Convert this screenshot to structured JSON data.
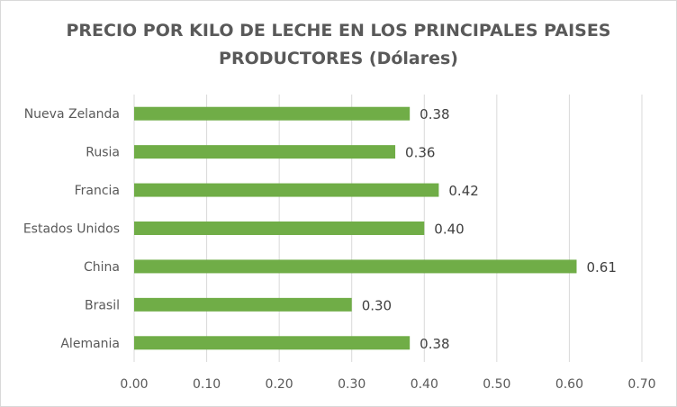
{
  "chart_data": {
    "type": "bar",
    "orientation": "horizontal",
    "title_lines": [
      "PRECIO POR KILO DE LECHE EN LOS PRINCIPALES PAISES",
      "PRODUCTORES (Dólares)"
    ],
    "categories": [
      "Nueva Zelanda",
      "Rusia",
      "Francia",
      "Estados Unidos",
      "China",
      "Brasil",
      "Alemania"
    ],
    "values": [
      0.38,
      0.36,
      0.42,
      0.4,
      0.61,
      0.3,
      0.38
    ],
    "value_labels": [
      "0.38",
      "0.36",
      "0.42",
      "0.40",
      "0.61",
      "0.30",
      "0.38"
    ],
    "xlim": [
      0,
      0.7
    ],
    "x_ticks": [
      "0.00",
      "0.10",
      "0.20",
      "0.30",
      "0.40",
      "0.50",
      "0.60",
      "0.70"
    ],
    "grid": "vertical",
    "legend": "none",
    "bar_color": "#70ad47",
    "grid_color": "#d9d9d9",
    "text_color": "#595959"
  }
}
